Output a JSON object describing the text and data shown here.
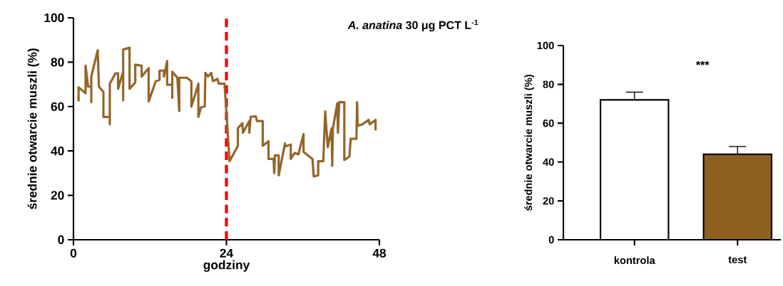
{
  "chart_data": [
    {
      "type": "line",
      "title": "*A. anatina* 30 μg PCT L$^{-1}$",
      "xlabel": "godziny",
      "ylabel": "średnie otwarcie muszli  (%)",
      "xlim": [
        0,
        48
      ],
      "xticks": [
        0,
        24,
        48
      ],
      "ylim": [
        0,
        100
      ],
      "yticks": [
        0,
        20,
        40,
        60,
        80,
        100
      ],
      "ref_lines": [
        {
          "axis": "x",
          "value": 24,
          "color": "#ff0000",
          "line_style": "dashed"
        }
      ],
      "series": [
        {
          "color": "#94652a",
          "x": [
            0.8,
            0.8,
            1.9,
            1.9,
            2.3,
            2.8,
            2.8,
            2.8,
            3.8,
            4.0,
            4.7,
            4.7,
            5.7,
            5.7,
            5.7,
            6.6,
            7.0,
            7.0,
            7.8,
            7.8,
            7.8,
            8.8,
            8.8,
            9.7,
            9.7,
            10.7,
            10.7,
            11.8,
            11.8,
            12.0,
            12.9,
            13.5,
            13.5,
            14.2,
            14.2,
            14.7,
            14.7,
            15.5,
            15.5,
            15.5,
            16.3,
            16.6,
            16.6,
            17.8,
            18.5,
            18.5,
            19.1,
            19.6,
            19.6,
            20.0,
            20.6,
            20.7,
            21.1,
            21.6,
            21.9,
            22.6,
            22.8,
            23.7,
            24.5,
            25.8,
            25.8,
            26.5,
            26.6,
            27.6,
            27.6,
            27.8,
            28.6,
            28.8,
            29.7,
            29.7,
            30.6,
            30.6,
            31.4,
            31.5,
            31.6,
            32.2,
            32.2,
            33.2,
            33.2,
            34.1,
            34.1,
            34.7,
            35.3,
            36.1,
            36.1,
            37.5,
            37.7,
            38.4,
            38.4,
            39.2,
            39.5,
            39.9,
            40.5,
            40.6,
            40.7,
            41.4,
            41.5,
            41.7,
            42.5,
            42.5,
            43.3,
            43.5,
            44.4,
            44.5,
            44.6,
            45.3,
            46.3,
            46.5,
            47.4,
            47.4
          ],
          "values": [
            62.3,
            68.7,
            66.0,
            78.4,
            69.0,
            69.0,
            62.0,
            73.5,
            85.4,
            69.0,
            66.6,
            55.3,
            55.3,
            52.0,
            70.3,
            75.0,
            75.0,
            68.0,
            75.7,
            62.8,
            85.7,
            86.5,
            68.0,
            70.9,
            78.9,
            78.4,
            73.5,
            77.3,
            62.3,
            63.9,
            71.4,
            72.0,
            76.2,
            76.2,
            73.5,
            80.5,
            69.8,
            69.8,
            63.9,
            75.7,
            73.0,
            58.0,
            73.0,
            73.0,
            71.4,
            60.0,
            65.5,
            70.3,
            55.3,
            59.6,
            60.0,
            75.2,
            73.5,
            75.2,
            71.4,
            72.5,
            70.3,
            70.3,
            35.4,
            42.3,
            50.3,
            52.5,
            48.2,
            53.5,
            48.2,
            55.4,
            55.6,
            53.5,
            53.5,
            42.3,
            44.4,
            36.4,
            36.4,
            30.0,
            38.0,
            38.0,
            29.0,
            43.4,
            42.0,
            42.9,
            36.4,
            39.1,
            38.5,
            47.6,
            39.6,
            36.4,
            28.5,
            29.0,
            35.4,
            35.4,
            57.8,
            41.7,
            50.2,
            33.3,
            50.0,
            61.5,
            48.2,
            62.0,
            62.0,
            35.9,
            37.5,
            45.5,
            45.5,
            62.0,
            51.4,
            51.9,
            54.0,
            52.0,
            54.0,
            49.3
          ]
        }
      ]
    },
    {
      "type": "bar",
      "ylabel": "średnie otwarcie muszli (%)",
      "categories": [
        "kontrola",
        "test"
      ],
      "values": [
        72,
        44
      ],
      "errors": [
        4,
        4
      ],
      "colors": [
        "#ffffff",
        "#8e6020"
      ],
      "ylim": [
        0,
        100
      ],
      "yticks": [
        0,
        20,
        40,
        60,
        80,
        100
      ],
      "annotations": [
        "***"
      ]
    }
  ]
}
